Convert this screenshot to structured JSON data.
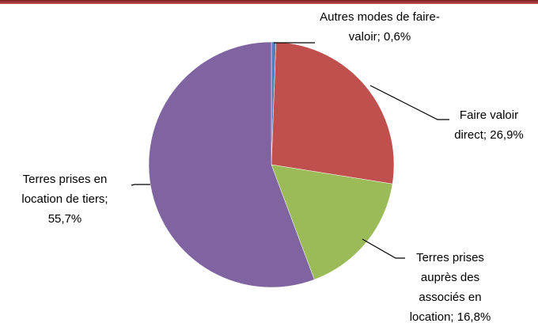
{
  "chart_data": {
    "type": "pie",
    "categories": [
      "Autres modes de faire-valoir;",
      "Faire valoir direct;",
      "Terres prises auprès des associés en location;",
      "Terres prises en location de tiers;"
    ],
    "values": [
      0.6,
      26.9,
      16.8,
      55.7
    ],
    "value_labels": [
      "0,6%",
      "26,9%",
      "16,8%",
      "55,7%"
    ],
    "colors": [
      "#4f81bd",
      "#c0504d",
      "#9bbb59",
      "#8064a2"
    ]
  }
}
